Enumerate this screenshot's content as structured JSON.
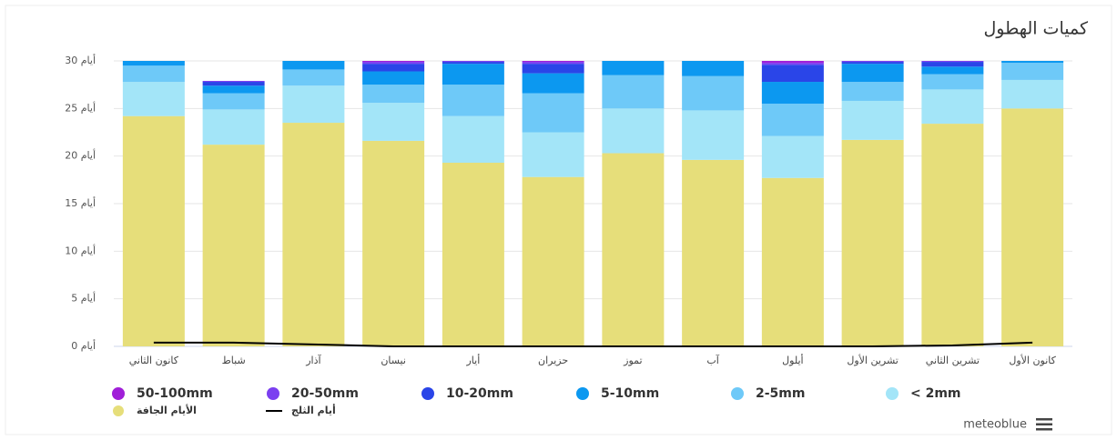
{
  "chart_data": {
    "type": "bar",
    "stacked": true,
    "title": "كميات الهطول",
    "credit": "meteoblue",
    "categories": [
      "كانون الثاني",
      "شباط",
      "آذار",
      "نيسان",
      "أيار",
      "حزيران",
      "تموز",
      "آب",
      "أيلول",
      "تشرين الأول",
      "تشرين الثاني",
      "كانون الأول"
    ],
    "series": [
      {
        "name": "50-100mm",
        "color": "#a01fd8",
        "values": [
          0,
          0,
          0,
          0.1,
          0,
          0.1,
          0,
          0,
          0.2,
          0,
          0,
          0
        ]
      },
      {
        "name": "20-50mm",
        "color": "#7b3ff0",
        "values": [
          0,
          0.1,
          0,
          0.2,
          0.1,
          0.2,
          0,
          0,
          0.2,
          0.1,
          0.1,
          0
        ]
      },
      {
        "name": "10-20mm",
        "color": "#2a45e8",
        "values": [
          0,
          0.4,
          0,
          0.8,
          0.2,
          1.0,
          0,
          0,
          1.8,
          0.2,
          0.5,
          0
        ]
      },
      {
        "name": "5-10mm",
        "color": "#0c98f0",
        "values": [
          0.5,
          0.8,
          0.9,
          1.4,
          2.2,
          2.1,
          1.5,
          1.6,
          2.3,
          1.9,
          0.8,
          0.2
        ]
      },
      {
        "name": "2-5mm",
        "color": "#6ec9f8",
        "values": [
          1.7,
          1.7,
          1.7,
          1.9,
          3.3,
          4.1,
          3.5,
          3.6,
          3.4,
          2.0,
          1.6,
          1.8
        ]
      },
      {
        "name": "< 2mm",
        "color": "#a3e5f8",
        "values": [
          3.6,
          3.7,
          3.9,
          4.0,
          4.9,
          4.7,
          4.7,
          5.2,
          4.4,
          4.1,
          3.6,
          3.0
        ]
      },
      {
        "name": "الأيام الجافة",
        "color": "#e6de7a",
        "values": [
          24.2,
          21.2,
          23.5,
          21.6,
          19.3,
          17.8,
          20.3,
          19.6,
          17.7,
          21.7,
          23.4,
          25.0
        ]
      },
      {
        "name": "أيام الثلج",
        "type": "line",
        "color": "#000000",
        "values": [
          0.4,
          0.4,
          0.2,
          0,
          0,
          0,
          0,
          0,
          0,
          0,
          0.1,
          0.4
        ]
      }
    ],
    "ylim": [
      0,
      30
    ],
    "yticks": [
      {
        "value": 0,
        "label": "أيام 0"
      },
      {
        "value": 5,
        "label": "أيام 5"
      },
      {
        "value": 10,
        "label": "أيام 10"
      },
      {
        "value": 15,
        "label": "أيام 15"
      },
      {
        "value": 20,
        "label": "أيام 20"
      },
      {
        "value": 25,
        "label": "أيام 25"
      },
      {
        "value": 30,
        "label": "أيام 30"
      }
    ],
    "grid": true
  }
}
